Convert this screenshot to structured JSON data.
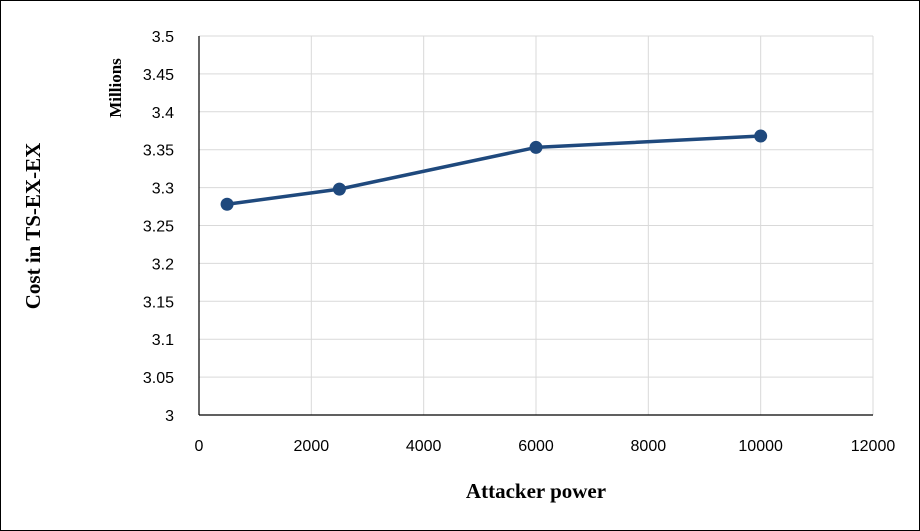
{
  "chart_data": {
    "type": "line",
    "title": "",
    "xlabel": "Attacker power",
    "ylabel": "Cost in TS-EX-EX",
    "y_units_label": "Millions",
    "xlim": [
      0,
      12000
    ],
    "ylim": [
      3,
      3.5
    ],
    "x_ticks": [
      "0",
      "2000",
      "4000",
      "6000",
      "8000",
      "10000",
      "12000"
    ],
    "y_ticks": [
      "3",
      "3.05",
      "3.1",
      "3.15",
      "3.2",
      "3.25",
      "3.3",
      "3.35",
      "3.4",
      "3.45",
      "3.5"
    ],
    "grid": true,
    "legend": false,
    "series": [
      {
        "color": "#1f497d",
        "x": [
          500,
          2500,
          6000,
          10000
        ],
        "y": [
          3.278,
          3.298,
          3.353,
          3.368
        ]
      }
    ]
  }
}
